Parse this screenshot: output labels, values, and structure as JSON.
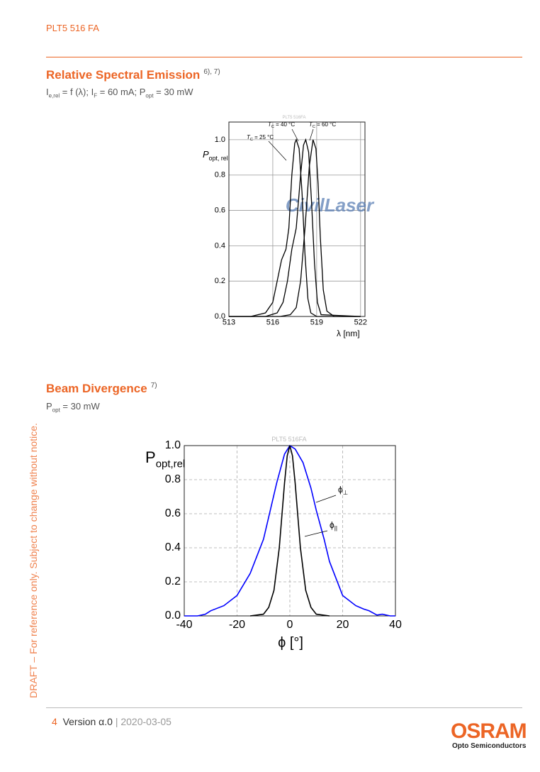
{
  "header": {
    "product": "PLT5 516 FA"
  },
  "sections": [
    {
      "title": "Relative Spectral Emission",
      "footnote": "6), 7)",
      "subtitle": [
        "I",
        "e,rel",
        " = f (λ); I",
        "F",
        " = 60 mA; P",
        "opt",
        " = 30 mW"
      ]
    },
    {
      "title": "Beam Divergence",
      "footnote": "7)",
      "subtitle": [
        "P",
        "opt",
        " = 30 mW"
      ]
    }
  ],
  "chart_data": [
    {
      "type": "line",
      "label": "PLT5 516FA",
      "watermark": "CivilLaser",
      "x_label": "λ [nm]",
      "y_label": [
        "P",
        "opt, rel"
      ],
      "xlim": [
        513,
        522.3
      ],
      "ylim": [
        0,
        1.1
      ],
      "xticks": [
        513,
        516,
        519,
        522
      ],
      "yticks": [
        {
          "value": 0,
          "label": "0.0"
        },
        0.2,
        0.4,
        0.6,
        0.8,
        {
          "value": 1,
          "label": "1.0"
        }
      ],
      "grid": true,
      "series": [
        {
          "name": [
            "T",
            "C",
            " = 25 °C"
          ],
          "color": "#000000",
          "x": [
            513,
            514.5,
            515.5,
            516.0,
            516.3,
            516.6,
            516.9,
            517.1,
            517.3,
            517.5,
            517.6,
            517.8,
            518.0,
            518.2,
            518.4,
            518.6,
            519,
            522
          ],
          "values": [
            0,
            0,
            0.02,
            0.08,
            0.2,
            0.32,
            0.38,
            0.5,
            0.8,
            0.98,
            1.0,
            0.95,
            0.7,
            0.35,
            0.1,
            0.02,
            0,
            0
          ]
        },
        {
          "name": [
            "T",
            "C",
            " = 40 °C"
          ],
          "color": "#000000",
          "x": [
            513,
            515.5,
            516.3,
            516.7,
            517.0,
            517.3,
            517.6,
            517.9,
            518.1,
            518.25,
            518.45,
            518.65,
            518.85,
            519.05,
            519.3,
            522
          ],
          "values": [
            0,
            0,
            0.02,
            0.08,
            0.2,
            0.38,
            0.5,
            0.8,
            0.97,
            1.0,
            0.93,
            0.65,
            0.3,
            0.08,
            0.01,
            0
          ]
        },
        {
          "name": [
            "T",
            "C",
            " = 60 °C"
          ],
          "color": "#000000",
          "x": [
            513,
            516.5,
            517.2,
            517.6,
            517.9,
            518.2,
            518.5,
            518.75,
            518.95,
            519.1,
            519.25,
            519.45,
            519.7,
            520.2,
            522
          ],
          "values": [
            0,
            0,
            0.01,
            0.05,
            0.2,
            0.5,
            0.85,
            1.0,
            0.95,
            0.75,
            0.45,
            0.15,
            0.03,
            0,
            0
          ]
        }
      ]
    },
    {
      "type": "line",
      "label": "PLT5 516FA",
      "x_label": "ϕ [°]",
      "y_label": [
        "P",
        "opt,rel"
      ],
      "xlim": [
        -40,
        40
      ],
      "ylim": [
        0,
        1
      ],
      "xticks": [
        -40,
        -20,
        0,
        20,
        40
      ],
      "yticks": [
        {
          "value": 0,
          "label": "0.0"
        },
        0.2,
        0.4,
        0.6,
        0.8,
        {
          "value": 1,
          "label": "1.0"
        }
      ],
      "grid": true,
      "series": [
        {
          "name": [
            "ϕ",
            "⊥"
          ],
          "color": "#0000ff",
          "x": [
            -40,
            -35,
            -32,
            -30,
            -25,
            -20,
            -15,
            -10,
            -5,
            -2,
            0,
            2,
            5,
            8,
            10,
            13,
            15,
            20,
            25,
            28,
            30,
            33,
            35,
            38,
            40
          ],
          "values": [
            0,
            0,
            0.01,
            0.03,
            0.06,
            0.12,
            0.25,
            0.45,
            0.78,
            0.95,
            1.0,
            0.98,
            0.9,
            0.75,
            0.62,
            0.45,
            0.32,
            0.12,
            0.06,
            0.04,
            0.03,
            0.005,
            0.01,
            0,
            0
          ]
        },
        {
          "name": [
            "ϕ",
            "||"
          ],
          "color": "#000000",
          "x": [
            -15,
            -10,
            -8,
            -6,
            -4,
            -2,
            -1,
            0,
            1,
            2,
            4,
            6,
            8,
            10,
            15
          ],
          "values": [
            0,
            0.01,
            0.05,
            0.15,
            0.4,
            0.78,
            0.94,
            1.0,
            0.94,
            0.78,
            0.4,
            0.15,
            0.05,
            0.01,
            0
          ]
        }
      ]
    }
  ],
  "side_note": "DRAFT – For reference only. Subject to change without notice.",
  "footer": {
    "page": "4",
    "version": "Version α.0",
    "separator": "|",
    "date": "2020-03-05",
    "brand": "OSRAM",
    "division": "Opto Semiconductors"
  }
}
